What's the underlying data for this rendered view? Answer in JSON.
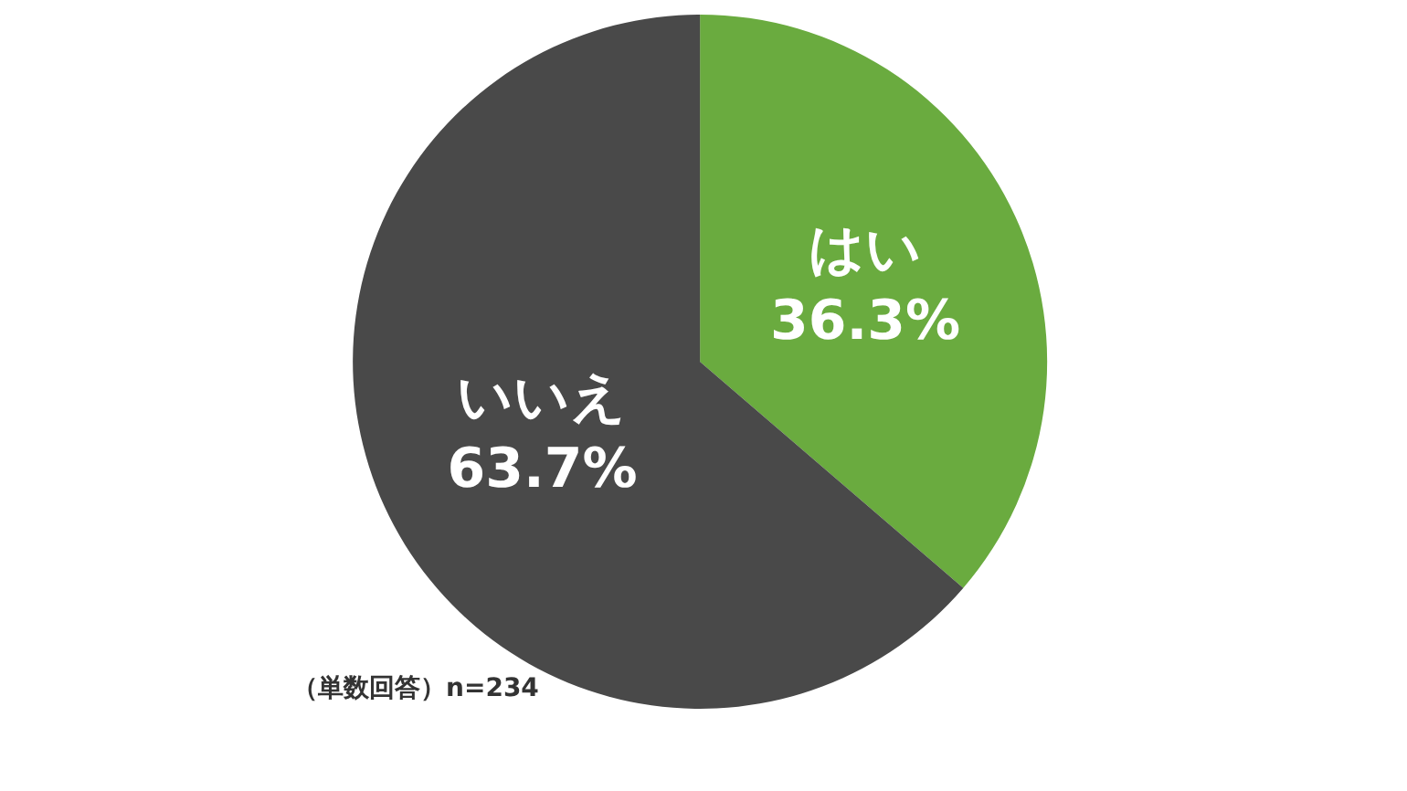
{
  "chart_data": {
    "type": "pie",
    "categories": [
      "はい",
      "いいえ"
    ],
    "values": [
      36.3,
      63.7
    ],
    "colors": [
      "#6aab3f",
      "#494949"
    ],
    "value_labels": [
      "36.3%",
      "63.7%"
    ],
    "annotations": [
      "（単数回答）n=234"
    ],
    "legend": false
  }
}
